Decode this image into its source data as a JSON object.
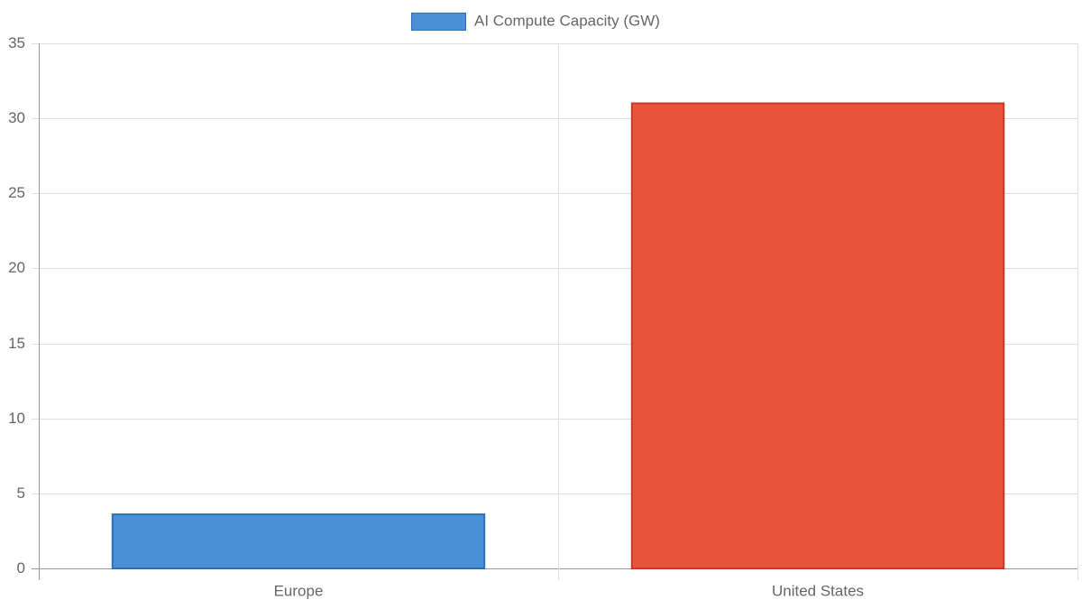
{
  "chart_data": {
    "type": "bar",
    "categories": [
      "Europe",
      "United States"
    ],
    "series": [
      {
        "name": "AI Compute Capacity (GW)",
        "color": [
          "#4a90d9",
          "#e8533a"
        ],
        "border_color": [
          "#2f6fad",
          "#c9392a"
        ],
        "values": [
          3.6,
          31
        ]
      }
    ],
    "ylim": [
      0,
      35
    ],
    "yticks": [
      0,
      5,
      10,
      15,
      20,
      25,
      30,
      35
    ],
    "grid": true,
    "legend": "top"
  }
}
